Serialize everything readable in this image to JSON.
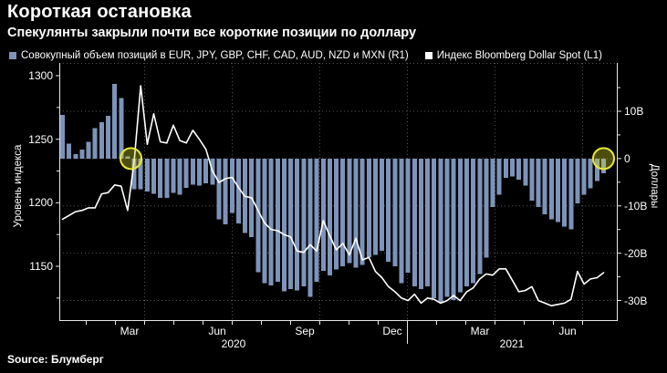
{
  "header": {
    "title": "Короткая остановка",
    "subtitle": "Спекулянты закрыли почти все короткие позиции по доллару"
  },
  "legend": [
    {
      "label": "Совокупный объем позиций в EUR, JPY, GBP, CHF, CAD, AUD, NZD и MXN (R1)",
      "color": "#7e93b9"
    },
    {
      "label": "Индекс Bloomberg Dollar Spot (L1)",
      "color": "#ffffff"
    }
  ],
  "source": "Source: Блумберг",
  "colors": {
    "background": "#000000",
    "bar": "#7e93b9",
    "line": "#ffffff",
    "grid": "#555555",
    "axis": "#e8e8e8",
    "highlight_ring": "#e8e838",
    "highlight_fill": "rgba(220,220,40,0.35)"
  },
  "chart_data": {
    "type": "bar",
    "subtype": "weekly bars with overlaid line, dual axis",
    "frequency": "weekly",
    "bar_series": {
      "name": "Совокупный объем позиций в EUR, JPY, GBP, CHF, CAD, AUD, NZD и MXN",
      "axis": "R1",
      "unit": "billions USD",
      "values": [
        9.2,
        3.2,
        0.9,
        1.9,
        3.5,
        6.4,
        7.7,
        9.0,
        15.8,
        12.8,
        0.5,
        -6.5,
        -6.5,
        -7.0,
        -7.4,
        -8.3,
        -8.3,
        -7.3,
        -7.6,
        -6.2,
        -5.5,
        -5.7,
        -5.2,
        -5.5,
        -12.8,
        -13.9,
        -11.5,
        -13.7,
        -15.7,
        -16.6,
        -24.0,
        -26.3,
        -26.8,
        -26.0,
        -28.1,
        -27.6,
        -27.9,
        -27.0,
        -29.2,
        -26.0,
        -23.7,
        -24.7,
        -23.4,
        -22.8,
        -22.1,
        -23.1,
        -22.5,
        -20.8,
        -20.4,
        -19.5,
        -21.8,
        -22.8,
        -26.3,
        -24.1,
        -27.0,
        -27.6,
        -27.0,
        -29.5,
        -30.5,
        -29.2,
        -29.9,
        -28.3,
        -27.0,
        -26.3,
        -24.4,
        -20.9,
        -10.2,
        -7.6,
        -4.1,
        -3.8,
        -4.5,
        -5.7,
        -8.9,
        -10.2,
        -11.8,
        -12.8,
        -13.4,
        -14.4,
        -15.0,
        -9.5,
        -7.6,
        -6.3,
        -4.7,
        -3.1
      ]
    },
    "line_series": {
      "name": "Индекс Bloomberg Dollar Spot",
      "axis": "L1",
      "values": [
        1187,
        1190,
        1193,
        1194,
        1196,
        1196,
        1207,
        1208,
        1214,
        1213,
        1194,
        1233,
        1292,
        1246,
        1270,
        1248,
        1247,
        1261,
        1249,
        1247,
        1257,
        1250,
        1242,
        1225,
        1216,
        1219,
        1220,
        1212,
        1205,
        1204,
        1194,
        1184,
        1179,
        1178,
        1175,
        1173,
        1162,
        1161,
        1167,
        1162,
        1186,
        1174,
        1163,
        1168,
        1159,
        1172,
        1155,
        1157,
        1146,
        1141,
        1134,
        1130,
        1125,
        1123,
        1128,
        1121,
        1125,
        1124,
        1121,
        1123,
        1127,
        1123,
        1130,
        1133,
        1140,
        1144,
        1143,
        1148,
        1148,
        1139,
        1130,
        1131,
        1134,
        1123,
        1121,
        1119,
        1120,
        1121,
        1124,
        1146,
        1136,
        1140,
        1141,
        1145
      ]
    },
    "left_axis": {
      "title": "Уровень индекса",
      "ticks": [
        1300,
        1250,
        1200,
        1150
      ],
      "range": [
        1110,
        1310
      ]
    },
    "right_axis": {
      "title": "Доллары",
      "tick_labels": [
        "10B",
        "0",
        "-10B",
        "-20B",
        "-30B"
      ],
      "tick_values": [
        10,
        0,
        -10,
        -20,
        -30
      ],
      "range": [
        -34,
        20
      ]
    },
    "x_axis": {
      "quarter_labels": [
        "Mar",
        "Jun",
        "Sep",
        "Dec",
        "Mar",
        "Jun"
      ],
      "year_labels": [
        "2020",
        "2021"
      ],
      "grid": "dotted vertical at quarter ends, dotted horizontal at 10B steps"
    },
    "annotations": [
      {
        "type": "circle",
        "week_index": 10.5,
        "value": 0,
        "meaning": "позиции пересекли ноль (март 2020)"
      },
      {
        "type": "circle",
        "week_index": 83,
        "value": 0,
        "meaning": "короткие позиции почти закрыты (июль 2021)"
      }
    ]
  }
}
